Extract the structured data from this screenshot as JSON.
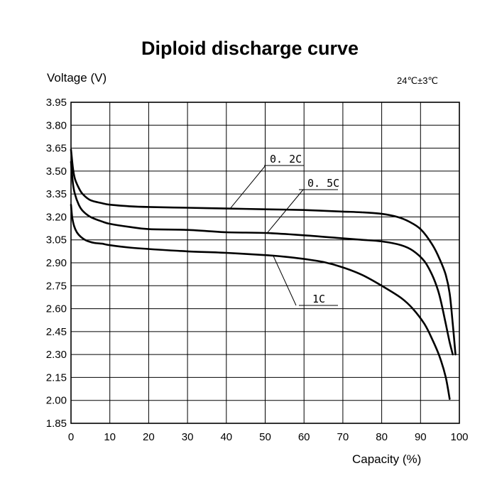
{
  "chart_data": {
    "type": "line",
    "title": "Diploid discharge curve",
    "ylabel": "Voltage  (V)",
    "xlabel": "Capacity  (%)",
    "temperature_note": "24℃±3℃",
    "xlim": [
      0,
      100
    ],
    "ylim": [
      1.85,
      3.95
    ],
    "x_ticks": [
      "0",
      "10",
      "20",
      "30",
      "40",
      "50",
      "60",
      "70",
      "80",
      "90",
      "100"
    ],
    "y_ticks": [
      "3.95",
      "3.80",
      "3.65",
      "3.50",
      "3.35",
      "3.20",
      "3.05",
      "2.90",
      "2.75",
      "2.60",
      "2.45",
      "2.30",
      "2.15",
      "2.00",
      "1.85"
    ],
    "grid": true,
    "series": [
      {
        "name": "0.2C",
        "x": [
          0,
          0.5,
          1,
          2,
          3,
          5,
          8,
          10,
          15,
          20,
          30,
          40,
          50,
          60,
          70,
          75,
          80,
          84,
          87,
          90,
          93,
          95,
          96.5,
          97.5,
          98.3,
          99
        ],
        "y": [
          3.64,
          3.52,
          3.45,
          3.39,
          3.35,
          3.31,
          3.29,
          3.28,
          3.27,
          3.265,
          3.26,
          3.255,
          3.25,
          3.245,
          3.235,
          3.23,
          3.22,
          3.2,
          3.17,
          3.12,
          3.02,
          2.92,
          2.82,
          2.7,
          2.5,
          2.3
        ]
      },
      {
        "name": "0.5C",
        "x": [
          0,
          0.5,
          1,
          2,
          3,
          5,
          8,
          10,
          15,
          20,
          30,
          40,
          50,
          60,
          70,
          75,
          80,
          85,
          88,
          91,
          93,
          94.5,
          95.5,
          96.5,
          97.5,
          98.3
        ],
        "y": [
          3.56,
          3.42,
          3.35,
          3.28,
          3.24,
          3.2,
          3.17,
          3.155,
          3.135,
          3.12,
          3.115,
          3.1,
          3.095,
          3.08,
          3.06,
          3.05,
          3.04,
          3.015,
          2.98,
          2.91,
          2.82,
          2.72,
          2.62,
          2.5,
          2.38,
          2.3
        ]
      },
      {
        "name": "1C",
        "x": [
          0,
          0.3,
          0.8,
          1.5,
          2.5,
          4,
          6,
          8,
          10,
          15,
          20,
          30,
          40,
          50,
          55,
          60,
          65,
          70,
          75,
          80,
          85,
          88,
          91,
          93,
          95,
          96.5,
          97.5
        ],
        "y": [
          3.28,
          3.2,
          3.14,
          3.1,
          3.07,
          3.045,
          3.03,
          3.025,
          3.015,
          3.0,
          2.99,
          2.975,
          2.965,
          2.95,
          2.94,
          2.925,
          2.905,
          2.87,
          2.82,
          2.75,
          2.67,
          2.6,
          2.5,
          2.4,
          2.28,
          2.15,
          2.01
        ]
      }
    ],
    "annotations": [
      {
        "label": "0. 2C",
        "series": "0.2C",
        "anchor_x": 41,
        "anchor_y": 3.255
      },
      {
        "label": "0. 5C",
        "series": "0.5C",
        "anchor_x": 50.5,
        "anchor_y": 3.095
      },
      {
        "label": "1C",
        "series": "1C",
        "anchor_x": 52,
        "anchor_y": 2.95
      }
    ]
  }
}
